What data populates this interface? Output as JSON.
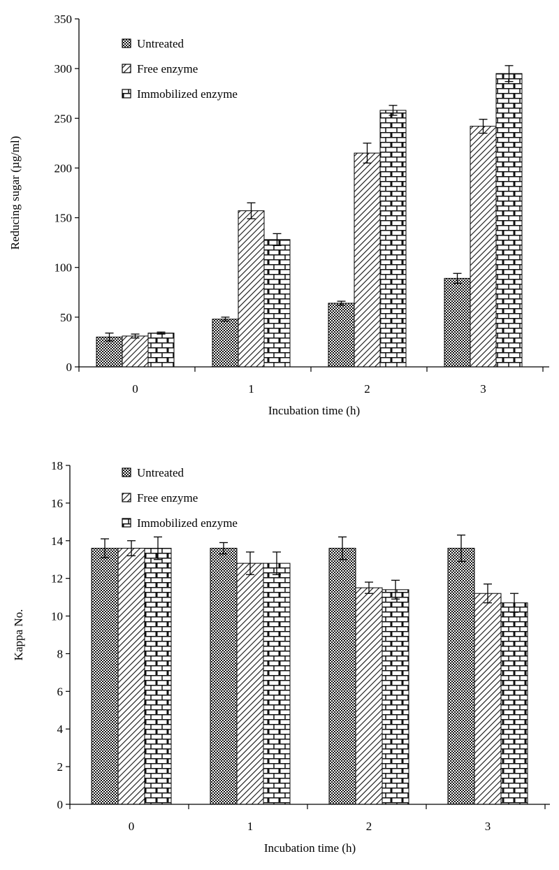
{
  "chart_data": [
    {
      "type": "bar",
      "categories": [
        "0",
        "1",
        "2",
        "3"
      ],
      "xlabel": "Incubation time (h)",
      "ylabel": "Reducing sugar (µg/ml)",
      "ylim": [
        0,
        350
      ],
      "yticks": [
        "0",
        "50",
        "100",
        "150",
        "200",
        "250",
        "300",
        "350"
      ],
      "grid": false,
      "legend_position": "top-left",
      "series": [
        {
          "name": "Untreated",
          "values": [
            30,
            48,
            64,
            89
          ],
          "errors": [
            4,
            2,
            2,
            5
          ],
          "pattern": "checker"
        },
        {
          "name": "Free enzyme",
          "values": [
            31,
            157,
            215,
            242
          ],
          "errors": [
            2,
            8,
            10,
            7
          ],
          "pattern": "diagonal"
        },
        {
          "name": "Immobilized enzyme",
          "values": [
            34,
            128,
            258,
            295
          ],
          "errors": [
            1,
            6,
            5,
            8
          ],
          "pattern": "brick"
        }
      ]
    },
    {
      "type": "bar",
      "categories": [
        "0",
        "1",
        "2",
        "3"
      ],
      "xlabel": "Incubation time (h)",
      "ylabel": "Kappa No.",
      "ylim": [
        0,
        18
      ],
      "yticks": [
        "0",
        "2",
        "4",
        "6",
        "8",
        "10",
        "12",
        "14",
        "16",
        "18"
      ],
      "grid": false,
      "legend_position": "top-left",
      "series": [
        {
          "name": "Untreated",
          "values": [
            13.6,
            13.6,
            13.6,
            13.6
          ],
          "errors": [
            0.5,
            0.3,
            0.6,
            0.7
          ],
          "pattern": "checker"
        },
        {
          "name": "Free enzyme",
          "values": [
            13.6,
            12.8,
            11.5,
            11.2
          ],
          "errors": [
            0.4,
            0.6,
            0.3,
            0.5
          ],
          "pattern": "diagonal"
        },
        {
          "name": "Immobilized enzyme",
          "values": [
            13.6,
            12.8,
            11.4,
            10.7
          ],
          "errors": [
            0.6,
            0.6,
            0.5,
            0.5
          ],
          "pattern": "brick"
        }
      ]
    }
  ]
}
